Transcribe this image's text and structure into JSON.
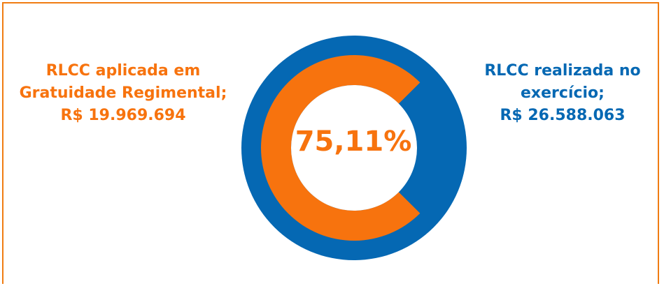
{
  "colors": {
    "orange": "#f7730e",
    "blue": "#0568b3",
    "frame": "#f07c12"
  },
  "chart_data": {
    "type": "pie",
    "style": "donut",
    "center_label": "75,11%",
    "slices": [
      {
        "name": "RLCC aplicada em Gratuidade Regimental",
        "value": 19969694,
        "label_lines": [
          "RLCC aplicada em",
          "Gratuidade Regimental;",
          "R$ 19.969.694"
        ]
      },
      {
        "name": "RLCC realizada no exercício",
        "value": 26588063,
        "label_lines": [
          "RLCC realizada no",
          "exercício;",
          "R$ 26.588.063"
        ]
      }
    ],
    "ratio_percent": 75.11
  }
}
